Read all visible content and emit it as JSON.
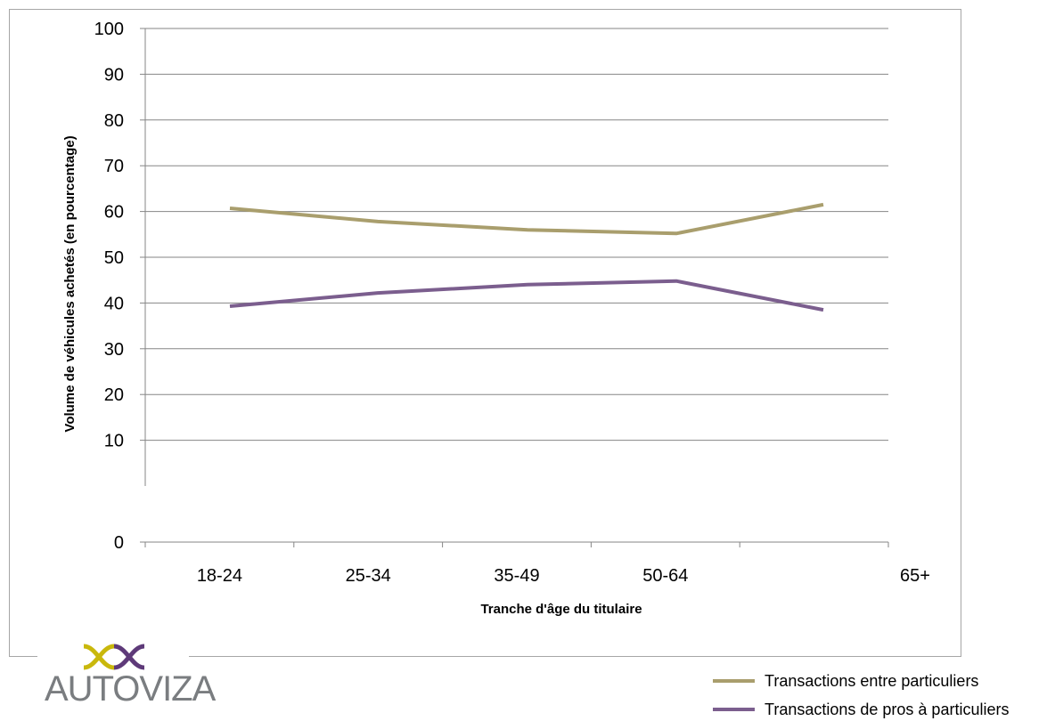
{
  "chart_data": {
    "type": "line",
    "categories": [
      "18-24",
      "25-34",
      "35-49",
      "50-64",
      "65+"
    ],
    "xlabel": "Tranche d'âge du titulaire",
    "ylabel": "Volume de véhicules achetés (en pourcentage)",
    "ylim": [
      0,
      100
    ],
    "yticks": [
      0,
      10,
      20,
      30,
      40,
      50,
      60,
      70,
      80,
      90,
      100
    ],
    "grid": true,
    "legend_position": "bottom-right",
    "series": [
      {
        "name": "Transactions entre particuliers",
        "color": "#a99e6d",
        "values": [
          60.7,
          57.8,
          56,
          55.2,
          61.5
        ]
      },
      {
        "name": "Transactions de pros à particuliers",
        "color": "#7b5e8e",
        "values": [
          39.3,
          42.2,
          44,
          44.8,
          38.5
        ]
      }
    ]
  },
  "logo": {
    "text": "AUTOVIZA",
    "mark_colors": [
      "#c9b80c",
      "#5e3a79"
    ]
  }
}
